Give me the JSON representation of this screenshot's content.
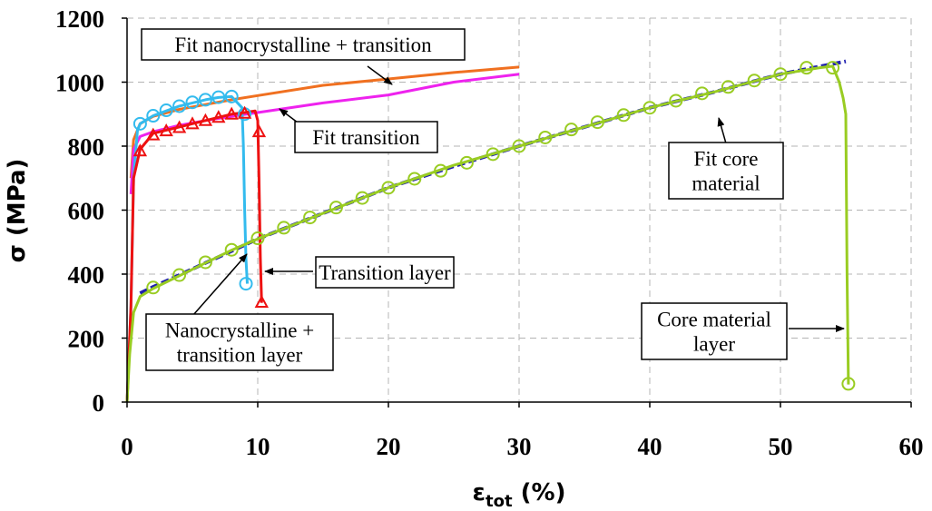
{
  "chart_data": {
    "type": "line",
    "ylabel": "σ (MPa)",
    "xlabel": {
      "main": "ε",
      "sub": "tot",
      "unit": "(%)"
    },
    "xlim": [
      0,
      60
    ],
    "ylim": [
      0,
      1200
    ],
    "xticks": [
      "0",
      "10",
      "20",
      "30",
      "40",
      "50",
      "60"
    ],
    "yticks": [
      "0",
      "200",
      "400",
      "600",
      "800",
      "1000",
      "1200"
    ],
    "grid": true,
    "series": [
      {
        "name": "Fit nanocrystalline + transition",
        "color": "#F07020",
        "style": "solid",
        "x": [
          0.3,
          0.5,
          1,
          2,
          4,
          6,
          8,
          10,
          15,
          20,
          25,
          30
        ],
        "y": [
          700,
          820,
          870,
          893,
          915,
          930,
          945,
          958,
          990,
          1010,
          1030,
          1047
        ]
      },
      {
        "name": "Fit transition",
        "color": "#EE22EE",
        "style": "solid",
        "x": [
          0.3,
          0.5,
          1,
          2,
          4,
          6,
          8,
          10,
          15,
          20,
          25,
          30
        ],
        "y": [
          650,
          790,
          830,
          845,
          865,
          880,
          893,
          905,
          935,
          960,
          1000,
          1025
        ]
      },
      {
        "name": "Fit core material",
        "color": "#1F1FB0",
        "style": "dashed",
        "x": [
          1,
          2,
          4,
          6,
          8,
          10,
          15,
          20,
          25,
          30,
          35,
          40,
          45,
          50,
          55
        ],
        "y": [
          340,
          360,
          397,
          435,
          472,
          510,
          590,
          670,
          737,
          800,
          860,
          920,
          970,
          1025,
          1065
        ]
      },
      {
        "name": "Nanocrystalline + transition layer",
        "color": "#33BBEE",
        "style": "solid",
        "marker": "circle",
        "x": [
          0,
          0.3,
          0.5,
          0.8,
          1,
          2,
          3,
          4,
          5,
          6,
          7,
          8,
          8.8,
          8.9,
          9,
          9.1,
          9.2
        ],
        "y": [
          0,
          300,
          700,
          850,
          870,
          895,
          910,
          925,
          935,
          945,
          952,
          955,
          920,
          800,
          600,
          450,
          370
        ],
        "marker_x": [
          1,
          2,
          3,
          4,
          5,
          6,
          7,
          8,
          9,
          9.1
        ],
        "marker_y": [
          870,
          895,
          912,
          925,
          937,
          945,
          953,
          955,
          900,
          370
        ]
      },
      {
        "name": "Transition layer",
        "color": "#EE1111",
        "style": "solid",
        "marker": "triangle",
        "x": [
          0,
          0.3,
          0.5,
          1,
          2,
          3,
          4,
          5,
          6,
          7,
          8,
          9,
          9.8,
          10,
          10.1,
          10.2,
          10.3
        ],
        "y": [
          0,
          300,
          700,
          790,
          840,
          850,
          860,
          870,
          880,
          890,
          900,
          905,
          910,
          880,
          700,
          450,
          310
        ],
        "marker_x": [
          1,
          2,
          3,
          4,
          5,
          6,
          7,
          8,
          9,
          10.1,
          10.3
        ],
        "marker_y": [
          785,
          835,
          848,
          858,
          870,
          880,
          890,
          900,
          903,
          845,
          312
        ]
      },
      {
        "name": "Core material layer",
        "color": "#99CC22",
        "style": "solid",
        "marker": "circle",
        "x": [
          0,
          0.2,
          0.5,
          1,
          2,
          4,
          6,
          8,
          10,
          15,
          20,
          25,
          30,
          35,
          40,
          45,
          50,
          53,
          54,
          54.5,
          54.8,
          55,
          55.1,
          55.2
        ],
        "y": [
          0,
          150,
          280,
          330,
          355,
          395,
          435,
          475,
          510,
          590,
          670,
          740,
          800,
          860,
          920,
          970,
          1025,
          1045,
          1050,
          1000,
          950,
          900,
          400,
          55
        ],
        "marker_x": [
          2,
          4,
          6,
          8,
          10,
          12,
          14,
          16,
          18,
          20,
          22,
          24,
          26,
          28,
          30,
          32,
          34,
          36,
          38,
          40,
          42,
          44,
          46,
          48,
          50,
          52,
          54,
          55.2
        ],
        "marker_y": [
          358,
          397,
          437,
          476,
          512,
          545,
          577,
          608,
          638,
          670,
          698,
          723,
          748,
          775,
          800,
          827,
          852,
          875,
          897,
          920,
          942,
          965,
          985,
          1005,
          1025,
          1045,
          1045,
          57
        ]
      }
    ],
    "annotations": [
      {
        "lines": [
          "Fit nanocrystalline + transition"
        ]
      },
      {
        "lines": [
          "Fit transition"
        ]
      },
      {
        "lines": [
          "Fit core",
          "material"
        ]
      },
      {
        "lines": [
          "Transition layer"
        ]
      },
      {
        "lines": [
          "Nanocrystalline +",
          "transition layer"
        ]
      },
      {
        "lines": [
          "Core material",
          "layer"
        ]
      }
    ]
  }
}
